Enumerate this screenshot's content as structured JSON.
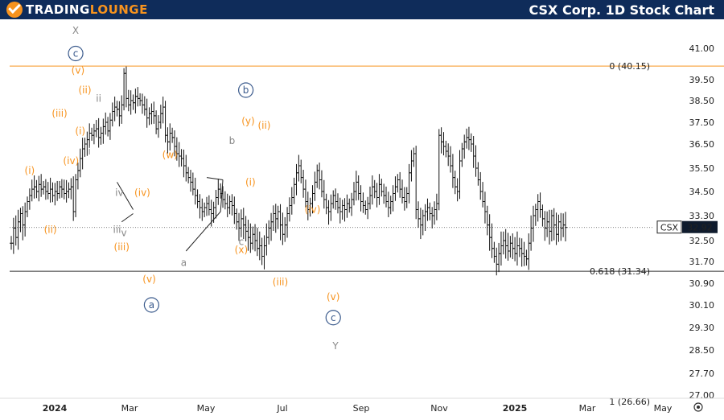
{
  "header": {
    "logo_text_1": "TRADING",
    "logo_text_2": "LOUNGE",
    "title": "CSX Corp. 1D Stock Chart"
  },
  "colors": {
    "header_bg": "#0f2c5a",
    "accent_orange": "#f7931e",
    "wave_gray": "#888888",
    "circle_blue": "#3a5a8c",
    "candle": "#111111"
  },
  "icons": [
    "logo-mark-icon",
    "settings-gear-icon"
  ],
  "chart_data": {
    "type": "candlestick",
    "symbol": "CSX",
    "last_price": 32.92,
    "y_ticks": [
      27.0,
      27.7,
      28.5,
      29.3,
      30.1,
      30.9,
      31.7,
      32.5,
      33.3,
      34.5,
      35.5,
      36.5,
      37.5,
      38.5,
      39.5,
      41.0
    ],
    "y_tick_labels": [
      "27.00",
      "27.70",
      "28.50",
      "29.30",
      "30.10",
      "30.90",
      "31.70",
      "32.50",
      "33.30",
      "34.50",
      "35.50",
      "36.50",
      "37.50",
      "38.50",
      "39.50",
      "41.00"
    ],
    "x_ticks": [
      "2024",
      "Mar",
      "May",
      "Jul",
      "Sep",
      "Nov",
      "2025",
      "Mar",
      "May"
    ],
    "levels": [
      {
        "label": "0 (40.15)",
        "value": 40.15,
        "color": "#f7931e"
      },
      {
        "label": "0.618 (31.34)",
        "value": 31.34,
        "color": "#333333"
      }
    ],
    "partial_level_label": "1 (26.66)",
    "price_series_daily_close": [
      32.4,
      32.9,
      32.6,
      33.1,
      33.4,
      33.0,
      33.5,
      34.0,
      34.3,
      34.6,
      34.7,
      34.5,
      34.8,
      34.6,
      34.7,
      34.5,
      34.4,
      34.6,
      34.3,
      34.5,
      34.4,
      34.7,
      34.6,
      34.4,
      34.5,
      34.6,
      34.7,
      33.5,
      35.0,
      35.4,
      35.9,
      36.3,
      36.5,
      36.7,
      37.0,
      36.9,
      37.1,
      37.2,
      36.8,
      37.0,
      37.3,
      37.5,
      37.1,
      37.6,
      38.0,
      38.2,
      38.1,
      37.8,
      38.3,
      39.8,
      38.6,
      38.3,
      38.5,
      38.4,
      38.7,
      38.6,
      38.5,
      38.3,
      38.1,
      37.7,
      37.9,
      38.0,
      37.8,
      37.2,
      37.5,
      37.9,
      38.2,
      36.9,
      36.6,
      37.0,
      36.8,
      36.4,
      36.1,
      36.0,
      35.9,
      35.6,
      35.3,
      35.1,
      34.9,
      34.6,
      34.3,
      34.0,
      33.7,
      33.5,
      33.7,
      33.9,
      33.6,
      33.4,
      33.7,
      34.2,
      34.6,
      34.4,
      34.1,
      33.9,
      33.7,
      34.0,
      33.8,
      33.4,
      33.1,
      32.9,
      33.2,
      33.0,
      32.8,
      32.6,
      32.4,
      32.7,
      32.5,
      32.2,
      32.3,
      31.9,
      32.3,
      32.6,
      32.9,
      33.1,
      33.4,
      33.2,
      33.5,
      33.0,
      32.7,
      33.0,
      33.4,
      33.8,
      34.2,
      34.8,
      35.3,
      35.6,
      35.1,
      34.6,
      34.0,
      33.6,
      33.9,
      34.4,
      34.9,
      35.4,
      35.0,
      34.5,
      34.1,
      33.7,
      33.5,
      33.9,
      34.3,
      34.0,
      33.7,
      33.5,
      33.8,
      33.6,
      33.9,
      33.7,
      34.1,
      34.5,
      34.9,
      34.4,
      34.0,
      33.8,
      33.6,
      33.9,
      34.3,
      34.7,
      34.5,
      34.2,
      34.8,
      34.5,
      34.3,
      34.0,
      33.7,
      34.0,
      34.4,
      34.7,
      35.0,
      34.6,
      34.2,
      34.0,
      34.4,
      35.3,
      35.8,
      36.1,
      33.6,
      33.2,
      33.0,
      33.3,
      33.5,
      33.7,
      33.4,
      33.3,
      33.6,
      33.9,
      36.9,
      36.6,
      36.4,
      36.2,
      36.0,
      35.6,
      35.1,
      34.7,
      34.5,
      35.8,
      36.3,
      36.6,
      36.8,
      36.7,
      36.5,
      36.0,
      35.5,
      35.0,
      34.5,
      34.0,
      33.5,
      33.0,
      32.6,
      32.2,
      31.9,
      31.6,
      32.0,
      32.3,
      32.5,
      32.3,
      32.1,
      32.4,
      32.2,
      32.0,
      32.3,
      32.2,
      32.0,
      31.9,
      31.8,
      32.4,
      32.9,
      33.3,
      33.6,
      34.0,
      33.6,
      33.2,
      32.9,
      33.1,
      32.8,
      33.3,
      33.0,
      32.7,
      33.1,
      32.9,
      33.0,
      32.92
    ],
    "wave_labels": [
      {
        "text": "X",
        "date_idx": 28,
        "price": 41.85,
        "style": "gray"
      },
      {
        "text": "c",
        "date_idx": 28,
        "price": 40.75,
        "style": "circle"
      },
      {
        "text": "(v)",
        "date_idx": 29,
        "price": 39.95,
        "style": "orange"
      },
      {
        "text": "(ii)",
        "date_idx": 32,
        "price": 39.0,
        "style": "orange"
      },
      {
        "text": "ii",
        "date_idx": 38,
        "price": 38.6,
        "style": "gray"
      },
      {
        "text": "(iii)",
        "date_idx": 21,
        "price": 37.9,
        "style": "orange"
      },
      {
        "text": "(i)",
        "date_idx": 30,
        "price": 37.1,
        "style": "orange"
      },
      {
        "text": "i",
        "date_idx": 34,
        "price": 36.2,
        "style": "gray"
      },
      {
        "text": "(iv)",
        "date_idx": 26,
        "price": 35.8,
        "style": "orange"
      },
      {
        "text": "(i)",
        "date_idx": 8,
        "price": 35.4,
        "style": "orange"
      },
      {
        "text": "(ii)",
        "date_idx": 17,
        "price": 32.85,
        "style": "orange"
      },
      {
        "text": "iv",
        "date_idx": 47,
        "price": 34.45,
        "style": "gray"
      },
      {
        "text": "(iv)",
        "date_idx": 57,
        "price": 34.45,
        "style": "orange"
      },
      {
        "text": "iii",
        "date_idx": 46,
        "price": 32.85,
        "style": "gray"
      },
      {
        "text": "v",
        "date_idx": 49,
        "price": 32.75,
        "style": "gray"
      },
      {
        "text": "(iii)",
        "date_idx": 48,
        "price": 32.25,
        "style": "orange"
      },
      {
        "text": "(v)",
        "date_idx": 60,
        "price": 31.05,
        "style": "orange"
      },
      {
        "text": "a",
        "date_idx": 61,
        "price": 30.1,
        "style": "circle"
      },
      {
        "text": "(w)",
        "date_idx": 69,
        "price": 36.05,
        "style": "orange"
      },
      {
        "text": "a",
        "date_idx": 75,
        "price": 31.65,
        "style": "gray"
      },
      {
        "text": "b",
        "date_idx": 96,
        "price": 36.65,
        "style": "gray"
      },
      {
        "text": "b",
        "date_idx": 102,
        "price": 39.0,
        "style": "circle"
      },
      {
        "text": "(y)",
        "date_idx": 103,
        "price": 37.55,
        "style": "orange"
      },
      {
        "text": "(ii)",
        "date_idx": 110,
        "price": 37.35,
        "style": "orange"
      },
      {
        "text": "(i)",
        "date_idx": 104,
        "price": 34.9,
        "style": "orange"
      },
      {
        "text": "c",
        "date_idx": 100,
        "price": 32.45,
        "style": "gray"
      },
      {
        "text": "(x)",
        "date_idx": 100,
        "price": 32.15,
        "style": "orange"
      },
      {
        "text": "(iii)",
        "date_idx": 117,
        "price": 30.95,
        "style": "orange"
      },
      {
        "text": "(iv)",
        "date_idx": 131,
        "price": 33.6,
        "style": "orange"
      },
      {
        "text": "(v)",
        "date_idx": 140,
        "price": 30.4,
        "style": "orange"
      },
      {
        "text": "c",
        "date_idx": 140,
        "price": 29.65,
        "style": "circle"
      },
      {
        "text": "Y",
        "date_idx": 141,
        "price": 28.65,
        "style": "gray"
      }
    ],
    "settings_icon": "settings-gear-icon"
  }
}
